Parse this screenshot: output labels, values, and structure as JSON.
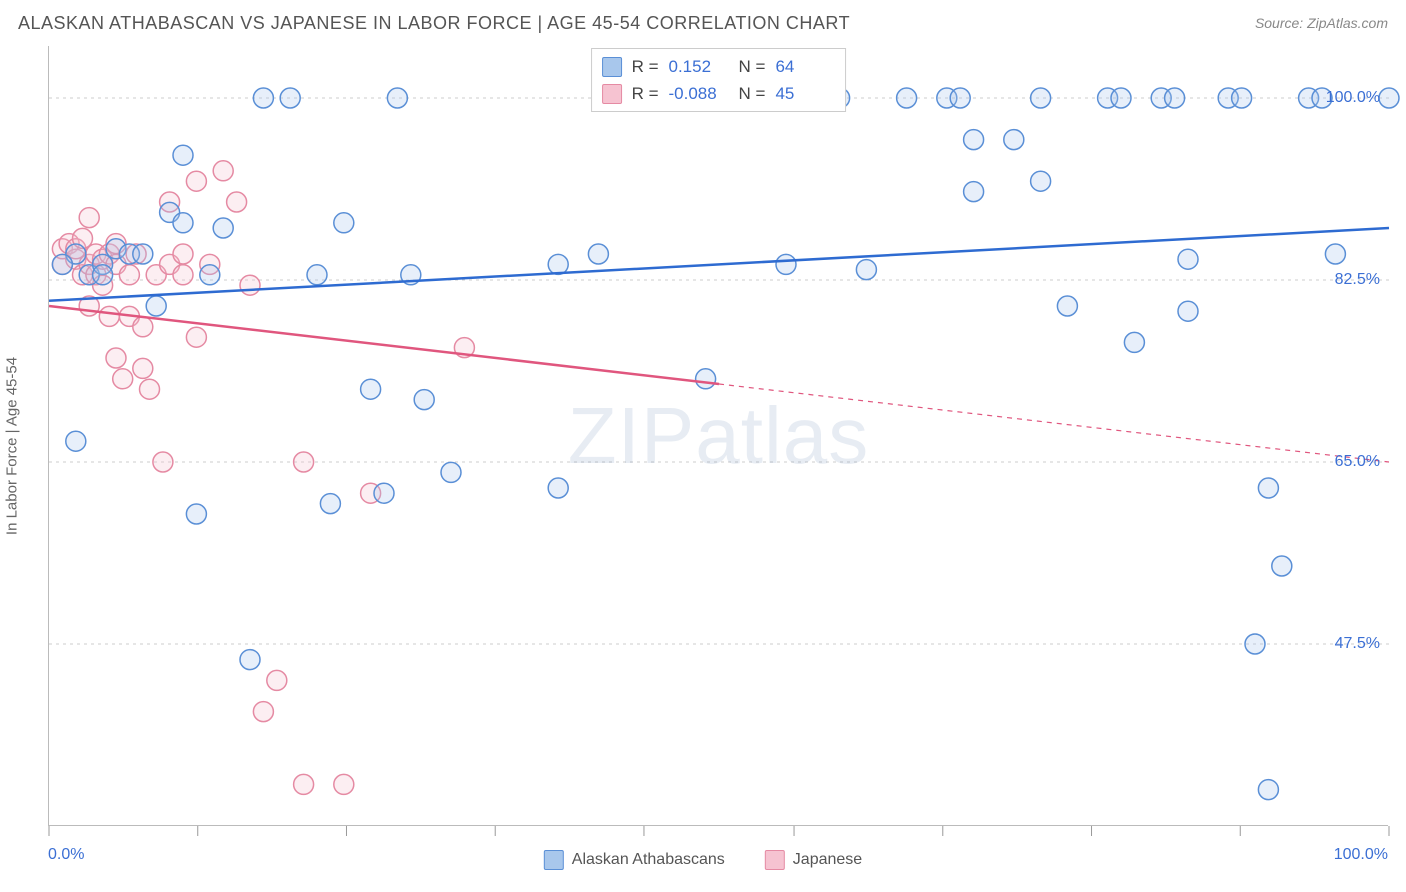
{
  "title": "ALASKAN ATHABASCAN VS JAPANESE IN LABOR FORCE | AGE 45-54 CORRELATION CHART",
  "source": "Source: ZipAtlas.com",
  "y_axis_title": "In Labor Force | Age 45-54",
  "watermark_a": "ZIP",
  "watermark_b": "atlas",
  "chart": {
    "type": "scatter",
    "xlim": [
      0,
      100
    ],
    "ylim": [
      30,
      105
    ],
    "x_min_label": "0.0%",
    "x_max_label": "100.0%",
    "y_ticks": [
      47.5,
      65.0,
      82.5,
      100.0
    ],
    "y_tick_labels": [
      "47.5%",
      "65.0%",
      "82.5%",
      "100.0%"
    ],
    "x_ticks": [
      0,
      11.1,
      22.2,
      33.3,
      44.4,
      55.6,
      66.7,
      77.8,
      88.9,
      100
    ],
    "background_color": "#ffffff",
    "grid_color": "#cccccc",
    "axis_color": "#bbbbbb",
    "label_color": "#3b6fd4",
    "marker_radius": 10,
    "marker_stroke_width": 1.5,
    "marker_fill_opacity": 0.28,
    "regression_line_width": 2.5,
    "series": [
      {
        "name": "Alaskan Athabascans",
        "color_stroke": "#5a8fd6",
        "color_fill": "#a8c7ec",
        "line_color": "#2e6bd1",
        "R": "0.152",
        "N": "64",
        "regression": {
          "x1": 0,
          "y1": 80.5,
          "x2": 100,
          "y2": 87.5,
          "solid_until": 100
        },
        "points": [
          [
            2,
            85
          ],
          [
            3,
            83
          ],
          [
            4,
            84
          ],
          [
            5,
            85.5
          ],
          [
            6,
            85
          ],
          [
            2,
            67
          ],
          [
            4,
            83
          ],
          [
            7,
            85
          ],
          [
            1,
            84
          ],
          [
            10,
            94.5
          ],
          [
            9,
            89
          ],
          [
            8,
            80
          ],
          [
            11,
            60
          ],
          [
            13,
            87.5
          ],
          [
            12,
            83
          ],
          [
            10,
            88
          ],
          [
            15,
            46
          ],
          [
            16,
            100
          ],
          [
            18,
            100
          ],
          [
            21,
            61
          ],
          [
            20,
            83
          ],
          [
            22,
            88
          ],
          [
            24,
            72
          ],
          [
            25,
            62
          ],
          [
            26,
            100
          ],
          [
            27,
            83
          ],
          [
            28,
            71
          ],
          [
            30,
            64
          ],
          [
            38,
            84
          ],
          [
            38,
            62.5
          ],
          [
            41,
            85
          ],
          [
            44,
            100
          ],
          [
            49,
            73
          ],
          [
            50,
            100
          ],
          [
            55,
            84
          ],
          [
            57,
            100
          ],
          [
            59,
            100
          ],
          [
            61,
            83.5
          ],
          [
            64,
            100
          ],
          [
            67,
            100
          ],
          [
            68,
            100
          ],
          [
            69,
            91
          ],
          [
            69,
            96
          ],
          [
            72,
            96
          ],
          [
            74,
            92
          ],
          [
            74,
            100
          ],
          [
            76,
            80
          ],
          [
            79,
            100
          ],
          [
            80,
            100
          ],
          [
            81,
            76.5
          ],
          [
            83,
            100
          ],
          [
            84,
            100
          ],
          [
            85,
            79.5
          ],
          [
            85,
            84.5
          ],
          [
            88,
            100
          ],
          [
            89,
            100
          ],
          [
            90,
            47.5
          ],
          [
            91,
            33.5
          ],
          [
            91,
            62.5
          ],
          [
            92,
            55
          ],
          [
            94,
            100
          ],
          [
            95,
            100
          ],
          [
            96,
            85
          ],
          [
            100,
            100
          ]
        ]
      },
      {
        "name": "Japanese",
        "color_stroke": "#e58aa3",
        "color_fill": "#f6c3d1",
        "line_color": "#e0567e",
        "R": "-0.088",
        "N": "45",
        "regression": {
          "x1": 0,
          "y1": 80,
          "x2": 100,
          "y2": 65,
          "solid_until": 50
        },
        "points": [
          [
            1,
            84
          ],
          [
            1,
            85.5
          ],
          [
            1.5,
            86
          ],
          [
            2,
            84.5
          ],
          [
            2,
            85.5
          ],
          [
            2.5,
            83
          ],
          [
            2.5,
            86.5
          ],
          [
            3,
            88.5
          ],
          [
            3,
            84
          ],
          [
            3.5,
            83
          ],
          [
            3.5,
            85
          ],
          [
            3,
            80
          ],
          [
            4,
            84.5
          ],
          [
            4,
            82
          ],
          [
            4.5,
            79
          ],
          [
            4.5,
            85
          ],
          [
            5,
            84
          ],
          [
            5,
            86
          ],
          [
            5,
            75
          ],
          [
            5.5,
            73
          ],
          [
            6,
            83
          ],
          [
            6,
            79
          ],
          [
            6.5,
            85
          ],
          [
            7,
            78
          ],
          [
            7,
            74
          ],
          [
            7.5,
            72
          ],
          [
            8,
            83
          ],
          [
            8.5,
            65
          ],
          [
            9,
            84
          ],
          [
            9,
            90
          ],
          [
            10,
            83
          ],
          [
            10,
            85
          ],
          [
            11,
            77
          ],
          [
            11,
            92
          ],
          [
            12,
            84
          ],
          [
            13,
            93
          ],
          [
            14,
            90
          ],
          [
            15,
            82
          ],
          [
            16,
            41
          ],
          [
            17,
            44
          ],
          [
            19,
            65
          ],
          [
            19,
            34
          ],
          [
            22,
            34
          ],
          [
            24,
            62
          ],
          [
            31,
            76
          ]
        ]
      }
    ]
  },
  "stats_box": {
    "row_label_r": "R =",
    "row_label_n": "N ="
  },
  "legend": {
    "items": [
      "Alaskan Athabascans",
      "Japanese"
    ]
  }
}
